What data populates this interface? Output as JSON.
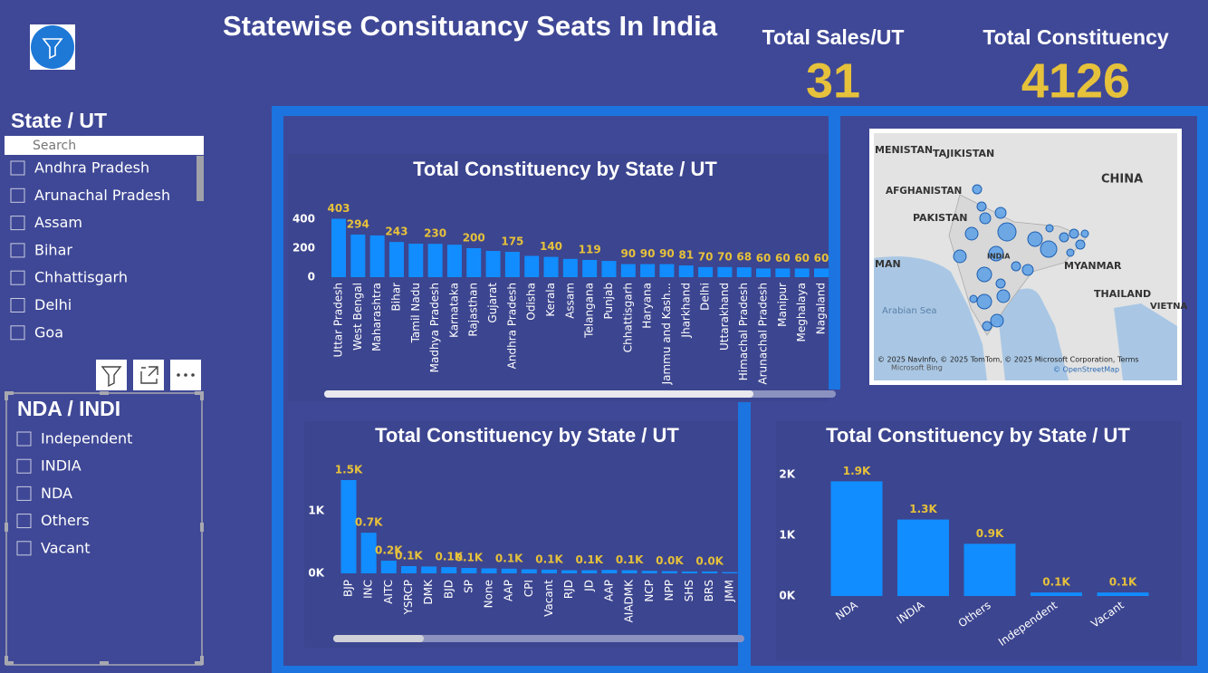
{
  "header": {
    "title": "Statewise Consituancy Seats In India"
  },
  "kpis": [
    {
      "label": "Total Sales/UT",
      "value": 31
    },
    {
      "label": "Total Constituency",
      "value": 4126
    }
  ],
  "state_slicer": {
    "title": "State / UT",
    "search": "Search",
    "items": [
      "Andhra Pradesh",
      "Arunachal Pradesh",
      "Assam",
      "Bihar",
      "Chhattisgarh",
      "Delhi",
      "Goa"
    ]
  },
  "alliance_slicer": {
    "title": "NDA / INDI",
    "items": [
      "Independent",
      "INDIA",
      "NDA",
      "Others",
      "Vacant"
    ]
  },
  "map": {
    "labels": [
      "MENISTAN",
      "TAJIKISTAN",
      "CHINA",
      "AFGHANISTAN",
      "PAKISTAN",
      "INDIA",
      "MAN",
      "MYANMAR",
      "THAILAND",
      "Arabian Sea",
      "VIETNA"
    ],
    "attribution": "© 2025 NavInfo, © 2025 TomTom, © 2025 Microsoft Corporation, Terms",
    "bing": "Microsoft Bing",
    "osm": "© OpenStreetMap"
  },
  "chart_data": [
    {
      "type": "bar",
      "title": "Total Constituency by State / UT",
      "color": "#118dff",
      "categories": [
        "Uttar Pradesh",
        "West Bengal",
        "Maharashtra",
        "Bihar",
        "Tamil Nadu",
        "Madhya Pradesh",
        "Karnataka",
        "Rajasthan",
        "Gujarat",
        "Andhra Pradesh",
        "Odisha",
        "Kerala",
        "Assam",
        "Telangana",
        "Punjab",
        "Chhattisgarh",
        "Haryana",
        "Jammu and Kash...",
        "Jharkhand",
        "Delhi",
        "Uttarakhand",
        "Himachal Pradesh",
        "Arunachal Pradesh",
        "Manipur",
        "Meghalaya",
        "Nagaland"
      ],
      "values": [
        403,
        294,
        288,
        243,
        231,
        230,
        224,
        200,
        181,
        175,
        147,
        140,
        126,
        119,
        112,
        90,
        90,
        90,
        81,
        70,
        70,
        68,
        60,
        60,
        60,
        60
      ],
      "value_labels": [
        "403",
        "294",
        null,
        "243",
        null,
        "230",
        null,
        "200",
        null,
        "175",
        null,
        "140",
        null,
        "119",
        null,
        "90",
        "90",
        "90",
        "81",
        "70",
        "70",
        "68",
        "60",
        "60",
        "60",
        "60"
      ],
      "ylim": [
        0,
        420
      ],
      "yticks": [
        0,
        200,
        400
      ],
      "grid": false
    },
    {
      "type": "bar",
      "title": "Total Constituency by State / UT",
      "color": "#118dff",
      "categories": [
        "BJP",
        "INC",
        "AITC",
        "YSRCP",
        "DMK",
        "BJD",
        "SP",
        "None",
        "AAP",
        "CPI",
        "Vacant",
        "RJD",
        "JD",
        "AAP",
        "AIADMK",
        "NCP",
        "NPP",
        "SHS",
        "BRS",
        "JMM"
      ],
      "values": [
        1493,
        650,
        203,
        116,
        110,
        100,
        87,
        80,
        75,
        65,
        60,
        50,
        50,
        55,
        50,
        40,
        35,
        30,
        30,
        20
      ],
      "value_labels": [
        "1.5K",
        "0.7K",
        "0.2K",
        "0.1K",
        null,
        "0.1K",
        "0.1K",
        null,
        "0.1K",
        null,
        "0.1K",
        null,
        "0.1K",
        null,
        "0.1K",
        null,
        "0.0K",
        null,
        "0.0K",
        null
      ],
      "ylim": [
        0,
        1700
      ],
      "yticks": [
        {
          "value": 0,
          "label": "0K"
        },
        {
          "value": 1000,
          "label": "1K"
        }
      ],
      "grid": false
    },
    {
      "type": "bar",
      "title": "Total Constituency by State / UT",
      "color": "#118dff",
      "categories": [
        "NDA",
        "INDIA",
        "Others",
        "Independent",
        "Vacant"
      ],
      "values": [
        1890,
        1260,
        860,
        58,
        58
      ],
      "value_labels": [
        "1.9K",
        "1.3K",
        "0.9K",
        "0.1K",
        "0.1K"
      ],
      "ylim": [
        0,
        2100
      ],
      "yticks": [
        {
          "value": 0,
          "label": "0K"
        },
        {
          "value": 1000,
          "label": "1K"
        },
        {
          "value": 2000,
          "label": "2K"
        }
      ],
      "grid": false
    }
  ]
}
